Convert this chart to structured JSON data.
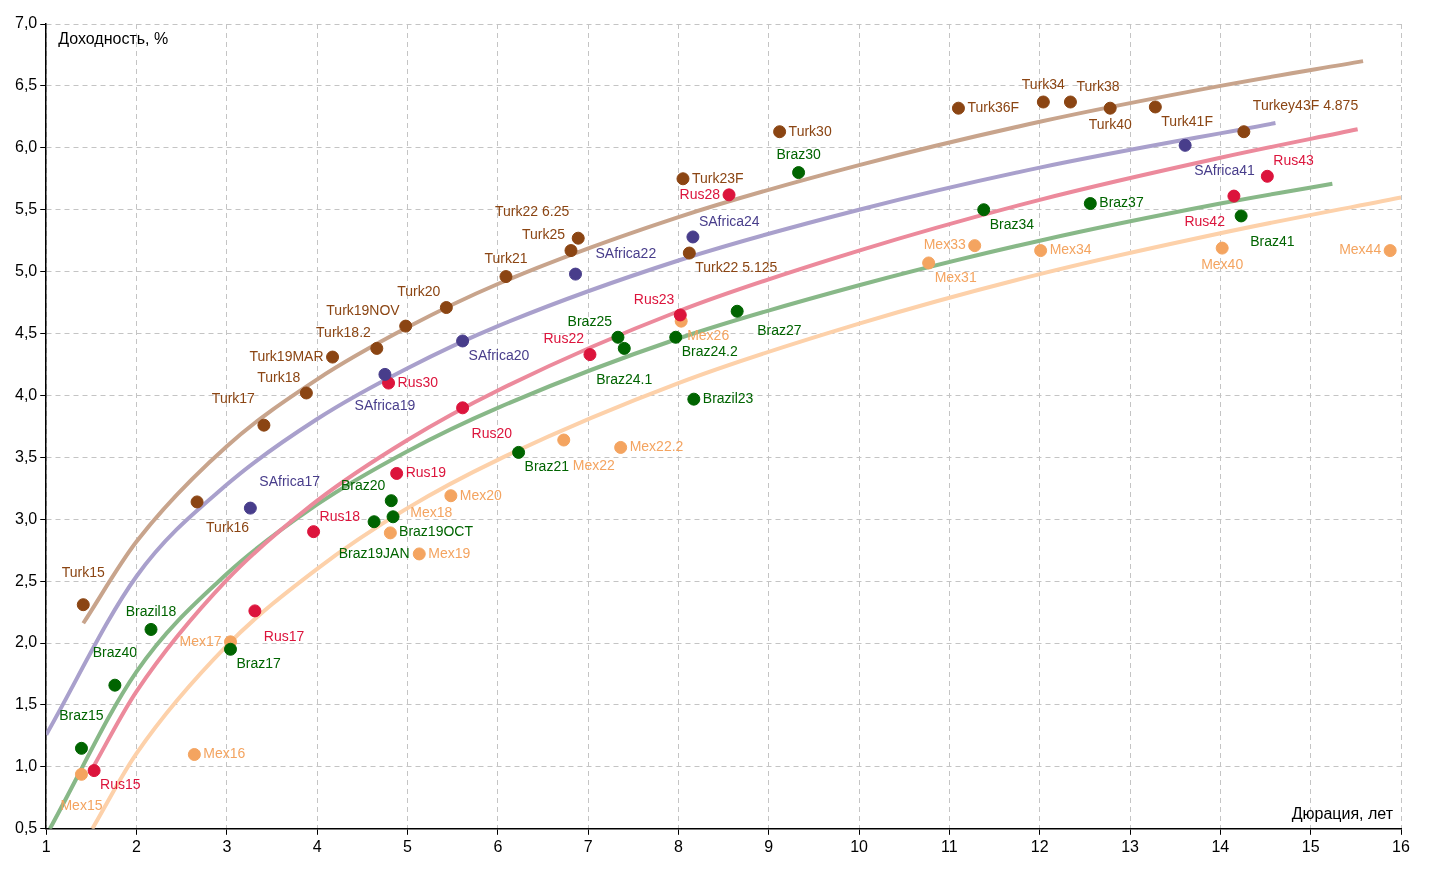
{
  "chart_data": {
    "type": "scatter",
    "xlabel": "Дюрация, лет",
    "ylabel": "Доходность, %",
    "xlim": [
      1,
      16
    ],
    "ylim": [
      0.5,
      7
    ],
    "xticks": [
      1,
      2,
      3,
      4,
      5,
      6,
      7,
      8,
      9,
      10,
      11,
      12,
      13,
      14,
      15,
      16
    ],
    "yticks": [
      {
        "value": 0.5,
        "label": "0,5"
      },
      {
        "value": 1,
        "label": "1,0"
      },
      {
        "value": 1.5,
        "label": "1,5"
      },
      {
        "value": 2,
        "label": "2,0"
      },
      {
        "value": 2.5,
        "label": "2,5"
      },
      {
        "value": 3,
        "label": "3,0"
      },
      {
        "value": 3.5,
        "label": "3,5"
      },
      {
        "value": 4,
        "label": "4,0"
      },
      {
        "value": 4.5,
        "label": "4,5"
      },
      {
        "value": 5,
        "label": "5,0"
      },
      {
        "value": 5.5,
        "label": "5,5"
      },
      {
        "value": 6,
        "label": "6,0"
      },
      {
        "value": 6.5,
        "label": "6,5"
      },
      {
        "value": 7,
        "label": "7,0"
      }
    ],
    "grid": true,
    "marker": "circle",
    "series": [
      {
        "type": "line",
        "marker": "none",
        "color": "#c8a48c",
        "x": [
          1.41,
          2,
          3,
          4,
          5,
          6,
          8,
          10,
          12,
          14,
          15.58
        ],
        "values": [
          2.16,
          2.82,
          3.59,
          4.13,
          4.55,
          4.9,
          5.44,
          5.86,
          6.21,
          6.5,
          6.7
        ]
      },
      {
        "type": "line",
        "marker": "none",
        "color": "#a9a0cc",
        "x": [
          1,
          2,
          3,
          4,
          5,
          6,
          8,
          10,
          12,
          14.61
        ],
        "values": [
          1.26,
          2.54,
          3.28,
          3.81,
          4.22,
          4.56,
          5.09,
          5.5,
          5.84,
          6.2
        ]
      },
      {
        "type": "line",
        "marker": "none",
        "color": "#ec8a9c",
        "x": [
          1.49,
          2,
          3,
          4,
          5,
          6,
          8,
          10,
          12,
          14,
          15.52
        ],
        "values": [
          0.96,
          1.61,
          2.51,
          3.15,
          3.64,
          4.04,
          4.68,
          5.17,
          5.58,
          5.92,
          6.15
        ]
      },
      {
        "type": "line",
        "marker": "none",
        "color": "#88b888",
        "x": [
          1.04,
          2,
          3,
          4,
          5,
          6,
          8,
          10,
          12,
          14,
          15.24
        ],
        "values": [
          0.5,
          1.77,
          2.56,
          3.12,
          3.55,
          3.9,
          4.46,
          4.89,
          5.25,
          5.55,
          5.71
        ]
      },
      {
        "type": "line",
        "marker": "none",
        "color": "#fdd1aa",
        "x": [
          1.51,
          2,
          3,
          4,
          5,
          6,
          8,
          10,
          12,
          14,
          16
        ],
        "values": [
          0.5,
          1.11,
          1.98,
          2.6,
          3.09,
          3.48,
          4.1,
          4.58,
          4.98,
          5.31,
          5.6
        ]
      },
      {
        "color": "#8b4513",
        "x": [
          1.41,
          2.67,
          3.41,
          3.88,
          4.17,
          4.66,
          4.98,
          5.43,
          6.09,
          6.81,
          6.89,
          8.12,
          8.05,
          9.12,
          11.1,
          12.04,
          12.34,
          12.78,
          13.28,
          14.26
        ],
        "values": [
          2.31,
          3.14,
          3.76,
          4.02,
          4.31,
          4.38,
          4.56,
          4.71,
          4.96,
          5.17,
          5.27,
          5.15,
          5.75,
          6.13,
          6.32,
          6.37,
          6.37,
          6.32,
          6.33,
          6.13
        ],
        "value_labels": [
          "Turk15",
          "Turk16",
          "Turk17",
          "Turk18",
          "Turk19MAR",
          "Turk18.2",
          "Turk19NOV",
          "Turk20",
          "Turk21",
          "Turk25",
          "Turk22 6.25",
          "Turk22 5.125",
          "Turk23F",
          "Turk30",
          "Turk36F",
          "Turk34",
          "Turk38",
          "Turk40",
          "Turk41F",
          "Turkey43F 4.875"
        ]
      },
      {
        "color": "#483d8b",
        "x": [
          3.26,
          4.75,
          5.61,
          6.86,
          8.16,
          13.61
        ],
        "values": [
          3.09,
          4.17,
          4.44,
          4.98,
          5.28,
          6.02
        ],
        "value_labels": [
          "SAfrica17",
          "SAfrica19",
          "SAfrica20",
          "SAfrica22",
          "SAfrica24",
          "SAfrica41"
        ]
      },
      {
        "color": "#dc143c",
        "x": [
          1.53,
          3.31,
          3.96,
          4.88,
          4.79,
          5.61,
          7.02,
          8.02,
          8.56,
          14.15,
          14.52
        ],
        "values": [
          0.97,
          2.26,
          2.9,
          3.37,
          4.1,
          3.9,
          4.33,
          4.65,
          5.62,
          5.61,
          5.77
        ],
        "value_labels": [
          "Rus15",
          "Rus17",
          "Rus18",
          "Rus19",
          "Rus30",
          "Rus20",
          "Rus22",
          "Rus23",
          "Rus28",
          "Rus42",
          "Rus43"
        ]
      },
      {
        "color": "#006400",
        "x": [
          1.39,
          1.76,
          2.16,
          3.04,
          4.63,
          4.84,
          4.82,
          6.23,
          7.33,
          7.4,
          7.97,
          8.65,
          8.17,
          9.33,
          11.38,
          12.56,
          14.23
        ],
        "values": [
          1.15,
          1.66,
          2.11,
          1.95,
          2.98,
          3.02,
          3.15,
          3.54,
          4.47,
          4.38,
          4.47,
          4.68,
          3.97,
          5.8,
          5.5,
          5.55,
          5.45
        ],
        "value_labels": [
          "Braz15",
          "Braz40",
          "Brazil18",
          "Braz17",
          "Braz19JAN",
          "Braz19OCT",
          "Braz20",
          "Braz21",
          "Braz25",
          "Braz24.1",
          "Braz24.2",
          "Braz27",
          "Brazil23",
          "Braz30",
          "Braz34",
          "Braz37",
          "Braz41"
        ]
      },
      {
        "color": "#f4a460",
        "x": [
          1.39,
          2.64,
          3.04,
          4.81,
          5.13,
          5.48,
          6.73,
          7.36,
          8.03,
          10.77,
          11.28,
          12.01,
          14.02,
          15.88
        ],
        "values": [
          0.94,
          1.1,
          2.01,
          2.89,
          2.72,
          3.19,
          3.64,
          3.58,
          4.6,
          5.07,
          5.21,
          5.17,
          5.19,
          5.17
        ],
        "value_labels": [
          "Mex15",
          "Mex16",
          "Mex17",
          "Mex18",
          "Mex19",
          "Mex20",
          "Mex22",
          "Mex22.2",
          "Mex26",
          "Mex31",
          "Mex33",
          "Mex34",
          "Mex40",
          "Mex44"
        ]
      }
    ]
  }
}
